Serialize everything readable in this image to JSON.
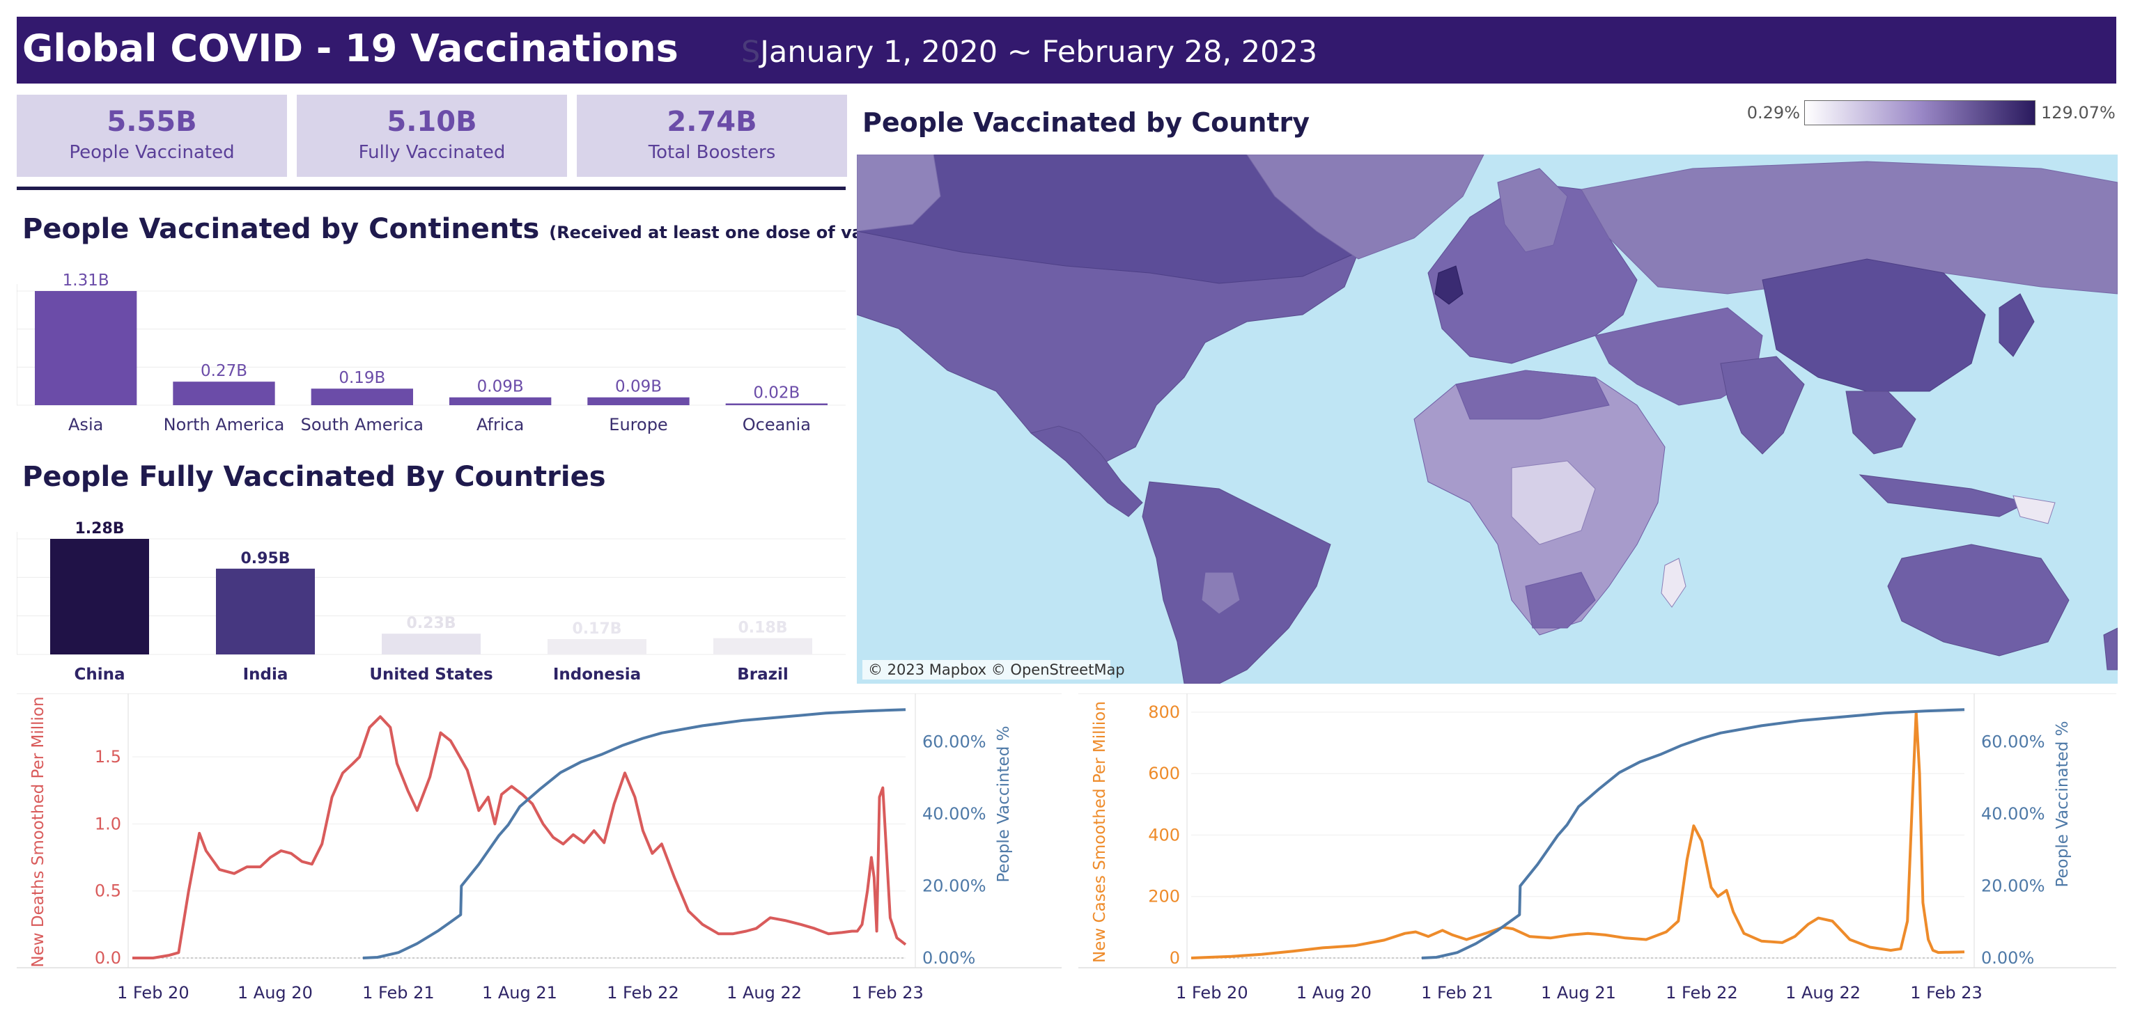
{
  "header": {
    "title": "Global COVID - 19 Vaccinations",
    "date_glyph": "S",
    "date_range": "January 1, 2020 ~ February 28, 2023"
  },
  "kpis": [
    {
      "value": "5.55B",
      "label": "People Vaccinated"
    },
    {
      "value": "5.10B",
      "label": "Fully Vaccinated"
    },
    {
      "value": "2.74B",
      "label": "Total Boosters"
    }
  ],
  "continents": {
    "title": "People Vaccinated by Continents",
    "subtitle": "(Received at least one dose of vaccination)"
  },
  "countries": {
    "title": "People Fully Vaccinated  By Countries"
  },
  "map": {
    "title": "People Vaccinated by Country",
    "legend_min": "0.29%",
    "legend_max": "129.07%",
    "attribution": "© 2023 Mapbox © OpenStreetMap"
  },
  "colors": {
    "header_bg": "#33196e",
    "kpi_bg": "#d9d4ea",
    "bar_purple": "#6b4ca8",
    "deaths_red": "#d95b5b",
    "cases_orange": "#ee8b2a",
    "vaccinated_blue": "#4e79a7",
    "ocean": "#bfe5f4",
    "land": "#7a68ad"
  },
  "chart_data": [
    {
      "type": "bar",
      "categories": [
        "Asia",
        "North America",
        "South America",
        "Africa",
        "Europe",
        "Oceania"
      ],
      "values": [
        1.31,
        0.27,
        0.19,
        0.09,
        0.09,
        0.02
      ],
      "labels": [
        "1.31B",
        "0.27B",
        "0.19B",
        "0.09B",
        "0.09B",
        "0.02B"
      ],
      "ylim": [
        0,
        1.31
      ]
    },
    {
      "type": "bar",
      "categories": [
        "China",
        "India",
        "United States",
        "Indonesia",
        "Brazil"
      ],
      "values": [
        1.28,
        0.95,
        0.23,
        0.17,
        0.18
      ],
      "labels": [
        "1.28B",
        "0.95B",
        "0.23B",
        "0.17B",
        "0.18B"
      ],
      "colors": [
        "#201247",
        "#463780",
        "#e6e3ee",
        "#efedf2",
        "#efedf2"
      ],
      "label_colors": [
        "#201247",
        "#2e2466",
        "#e4e1ea",
        "#e8e6ee",
        "#e8e6ee"
      ],
      "ylim": [
        0,
        1.28
      ]
    },
    {
      "type": "line",
      "x_ticks": [
        "1 Feb 20",
        "1 Aug 20",
        "1 Feb 21",
        "1 Aug 21",
        "1 Feb 22",
        "1 Aug 22",
        "1 Feb 23"
      ],
      "y_left_ticks": [
        "0.0",
        "0.5",
        "1.0",
        "1.5"
      ],
      "y_right_ticks": [
        "0.00%",
        "20.00%",
        "40.00%",
        "60.00%"
      ],
      "ylabel_left": "New Deaths Smoothed Per Million",
      "ylabel_right": "People Vaccinted %",
      "ylim_left": [
        0,
        1.88
      ],
      "ylim_right": [
        0,
        70
      ],
      "series": [
        {
          "name": "New Deaths Smoothed Per Million",
          "axis": "left",
          "x": [
            "2020-01-01",
            "2020-02-01",
            "2020-02-25",
            "2020-03-10",
            "2020-03-25",
            "2020-04-10",
            "2020-04-20",
            "2020-05-10",
            "2020-06-01",
            "2020-06-20",
            "2020-07-10",
            "2020-07-25",
            "2020-08-10",
            "2020-08-25",
            "2020-09-10",
            "2020-09-25",
            "2020-10-10",
            "2020-10-25",
            "2020-11-10",
            "2020-11-25",
            "2020-12-05",
            "2020-12-20",
            "2021-01-05",
            "2021-01-20",
            "2021-01-30",
            "2021-02-15",
            "2021-03-01",
            "2021-03-20",
            "2021-04-05",
            "2021-04-20",
            "2021-04-28",
            "2021-05-15",
            "2021-06-01",
            "2021-06-15",
            "2021-06-25",
            "2021-07-05",
            "2021-07-20",
            "2021-08-05",
            "2021-08-20",
            "2021-09-05",
            "2021-09-20",
            "2021-10-05",
            "2021-10-20",
            "2021-11-05",
            "2021-11-20",
            "2021-12-05",
            "2021-12-20",
            "2022-01-05",
            "2022-01-20",
            "2022-02-01",
            "2022-02-15",
            "2022-03-01",
            "2022-03-20",
            "2022-04-10",
            "2022-05-01",
            "2022-05-25",
            "2022-06-15",
            "2022-07-05",
            "2022-07-20",
            "2022-08-10",
            "2022-09-01",
            "2022-09-25",
            "2022-10-15",
            "2022-11-05",
            "2022-11-25",
            "2022-12-10",
            "2022-12-18",
            "2022-12-25",
            "2023-01-02",
            "2023-01-08",
            "2023-01-12",
            "2023-01-16",
            "2023-01-20",
            "2023-01-25",
            "2023-02-05",
            "2023-02-15",
            "2023-02-28"
          ],
          "y": [
            0.0,
            0.0,
            0.02,
            0.04,
            0.5,
            0.93,
            0.8,
            0.66,
            0.63,
            0.68,
            0.68,
            0.75,
            0.8,
            0.78,
            0.72,
            0.7,
            0.85,
            1.2,
            1.38,
            1.45,
            1.5,
            1.72,
            1.8,
            1.72,
            1.45,
            1.25,
            1.1,
            1.35,
            1.68,
            1.62,
            1.55,
            1.4,
            1.1,
            1.2,
            1.0,
            1.22,
            1.28,
            1.22,
            1.15,
            1.0,
            0.9,
            0.85,
            0.92,
            0.86,
            0.95,
            0.86,
            1.15,
            1.38,
            1.2,
            0.95,
            0.78,
            0.85,
            0.6,
            0.35,
            0.25,
            0.18,
            0.18,
            0.2,
            0.22,
            0.3,
            0.28,
            0.25,
            0.22,
            0.18,
            0.19,
            0.2,
            0.2,
            0.25,
            0.5,
            0.75,
            0.6,
            0.2,
            1.2,
            1.27,
            0.3,
            0.15,
            0.1
          ]
        },
        {
          "name": "People Vaccinted %",
          "axis": "right",
          "x": [
            "2020-12-10",
            "2021-01-01",
            "2021-02-01",
            "2021-03-01",
            "2021-04-01",
            "2021-04-20",
            "2021-05-05",
            "2021-05-06",
            "2021-06-01",
            "2021-07-01",
            "2021-07-15",
            "2021-08-01",
            "2021-09-01",
            "2021-10-01",
            "2021-11-01",
            "2021-12-01",
            "2022-01-01",
            "2022-02-01",
            "2022-03-01",
            "2022-05-01",
            "2022-07-01",
            "2022-09-01",
            "2022-11-01",
            "2023-01-01",
            "2023-02-28"
          ],
          "y": [
            0.0,
            0.2,
            1.5,
            4.0,
            7.5,
            10.0,
            12.0,
            20.0,
            26.0,
            34.0,
            37.0,
            42.0,
            47.0,
            51.5,
            54.5,
            56.5,
            59.0,
            61.0,
            62.5,
            64.5,
            66.0,
            67.0,
            68.0,
            68.6,
            69.0
          ]
        }
      ]
    },
    {
      "type": "line",
      "x_ticks": [
        "1 Feb 20",
        "1 Aug 20",
        "1 Feb 21",
        "1 Aug 21",
        "1 Feb 22",
        "1 Aug 22",
        "1 Feb 23"
      ],
      "y_left_ticks": [
        "0",
        "200",
        "400",
        "600",
        "800"
      ],
      "y_right_ticks": [
        "0.00%",
        "20.00%",
        "40.00%",
        "60.00%"
      ],
      "ylabel_left": "New Cases Smoothed Per Million",
      "ylabel_right": "People Vaccinated %",
      "ylim_left": [
        0,
        820
      ],
      "ylim_right": [
        0,
        70
      ],
      "series": [
        {
          "name": "New Cases Smoothed Per Million",
          "axis": "left",
          "x": [
            "2020-01-01",
            "2020-03-01",
            "2020-04-15",
            "2020-06-01",
            "2020-07-15",
            "2020-09-01",
            "2020-10-15",
            "2020-11-15",
            "2020-12-01",
            "2020-12-20",
            "2021-01-10",
            "2021-01-25",
            "2021-02-15",
            "2021-03-15",
            "2021-04-10",
            "2021-04-25",
            "2021-05-20",
            "2021-06-20",
            "2021-07-20",
            "2021-08-15",
            "2021-09-10",
            "2021-10-10",
            "2021-11-10",
            "2021-12-10",
            "2021-12-28",
            "2022-01-10",
            "2022-01-20",
            "2022-02-01",
            "2022-02-15",
            "2022-02-25",
            "2022-03-10",
            "2022-03-20",
            "2022-04-05",
            "2022-05-01",
            "2022-06-01",
            "2022-06-20",
            "2022-07-10",
            "2022-07-25",
            "2022-08-15",
            "2022-09-10",
            "2022-10-10",
            "2022-11-10",
            "2022-11-25",
            "2022-12-05",
            "2022-12-12",
            "2022-12-18",
            "2022-12-23",
            "2022-12-28",
            "2023-01-05",
            "2023-01-12",
            "2023-01-20",
            "2023-02-28"
          ],
          "y": [
            0,
            5,
            12,
            22,
            33,
            40,
            58,
            80,
            85,
            70,
            90,
            75,
            60,
            80,
            100,
            95,
            70,
            65,
            75,
            80,
            75,
            65,
            60,
            85,
            120,
            320,
            430,
            380,
            230,
            200,
            220,
            150,
            80,
            55,
            50,
            70,
            110,
            130,
            120,
            60,
            35,
            25,
            30,
            120,
            500,
            800,
            600,
            180,
            60,
            25,
            18,
            20
          ]
        },
        {
          "name": "People Vaccinated %",
          "axis": "right",
          "x": [
            "2020-12-10",
            "2021-01-01",
            "2021-02-01",
            "2021-03-01",
            "2021-04-01",
            "2021-04-20",
            "2021-05-05",
            "2021-05-06",
            "2021-06-01",
            "2021-07-01",
            "2021-07-15",
            "2021-08-01",
            "2021-09-01",
            "2021-10-01",
            "2021-11-01",
            "2021-12-01",
            "2022-01-01",
            "2022-02-01",
            "2022-03-01",
            "2022-05-01",
            "2022-07-01",
            "2022-09-01",
            "2022-11-01",
            "2023-01-01",
            "2023-02-28"
          ],
          "y": [
            0.0,
            0.2,
            1.5,
            4.0,
            7.5,
            10.0,
            12.0,
            20.0,
            26.0,
            34.0,
            37.0,
            42.0,
            47.0,
            51.5,
            54.5,
            56.5,
            59.0,
            61.0,
            62.5,
            64.5,
            66.0,
            67.0,
            68.0,
            68.6,
            69.0
          ]
        }
      ]
    }
  ]
}
